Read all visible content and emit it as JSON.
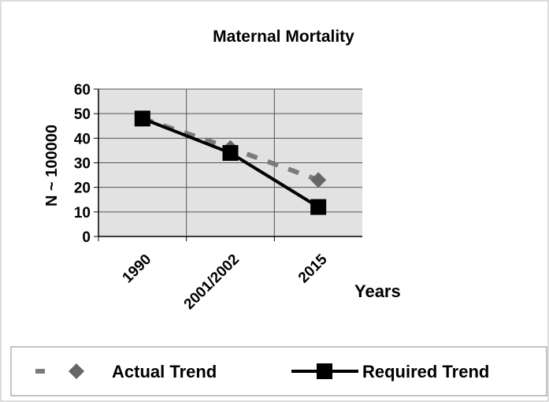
{
  "chart_data": {
    "type": "line",
    "title": "Maternal Mortality",
    "y_label": "N ~ 100000",
    "x_label": "Years",
    "categories": [
      "1990",
      "2001/2002",
      "2015"
    ],
    "series": [
      {
        "name": "Actual Trend",
        "color": "#7a7a7a",
        "values": [
          48,
          36,
          23
        ]
      },
      {
        "name": "Required Trend",
        "color": "#000000",
        "values": [
          48,
          34,
          12
        ]
      }
    ],
    "ylim": [
      0,
      60
    ],
    "yticks": [
      0,
      10,
      20,
      30,
      40,
      50,
      60
    ],
    "grid": true,
    "legend": "bottom"
  }
}
